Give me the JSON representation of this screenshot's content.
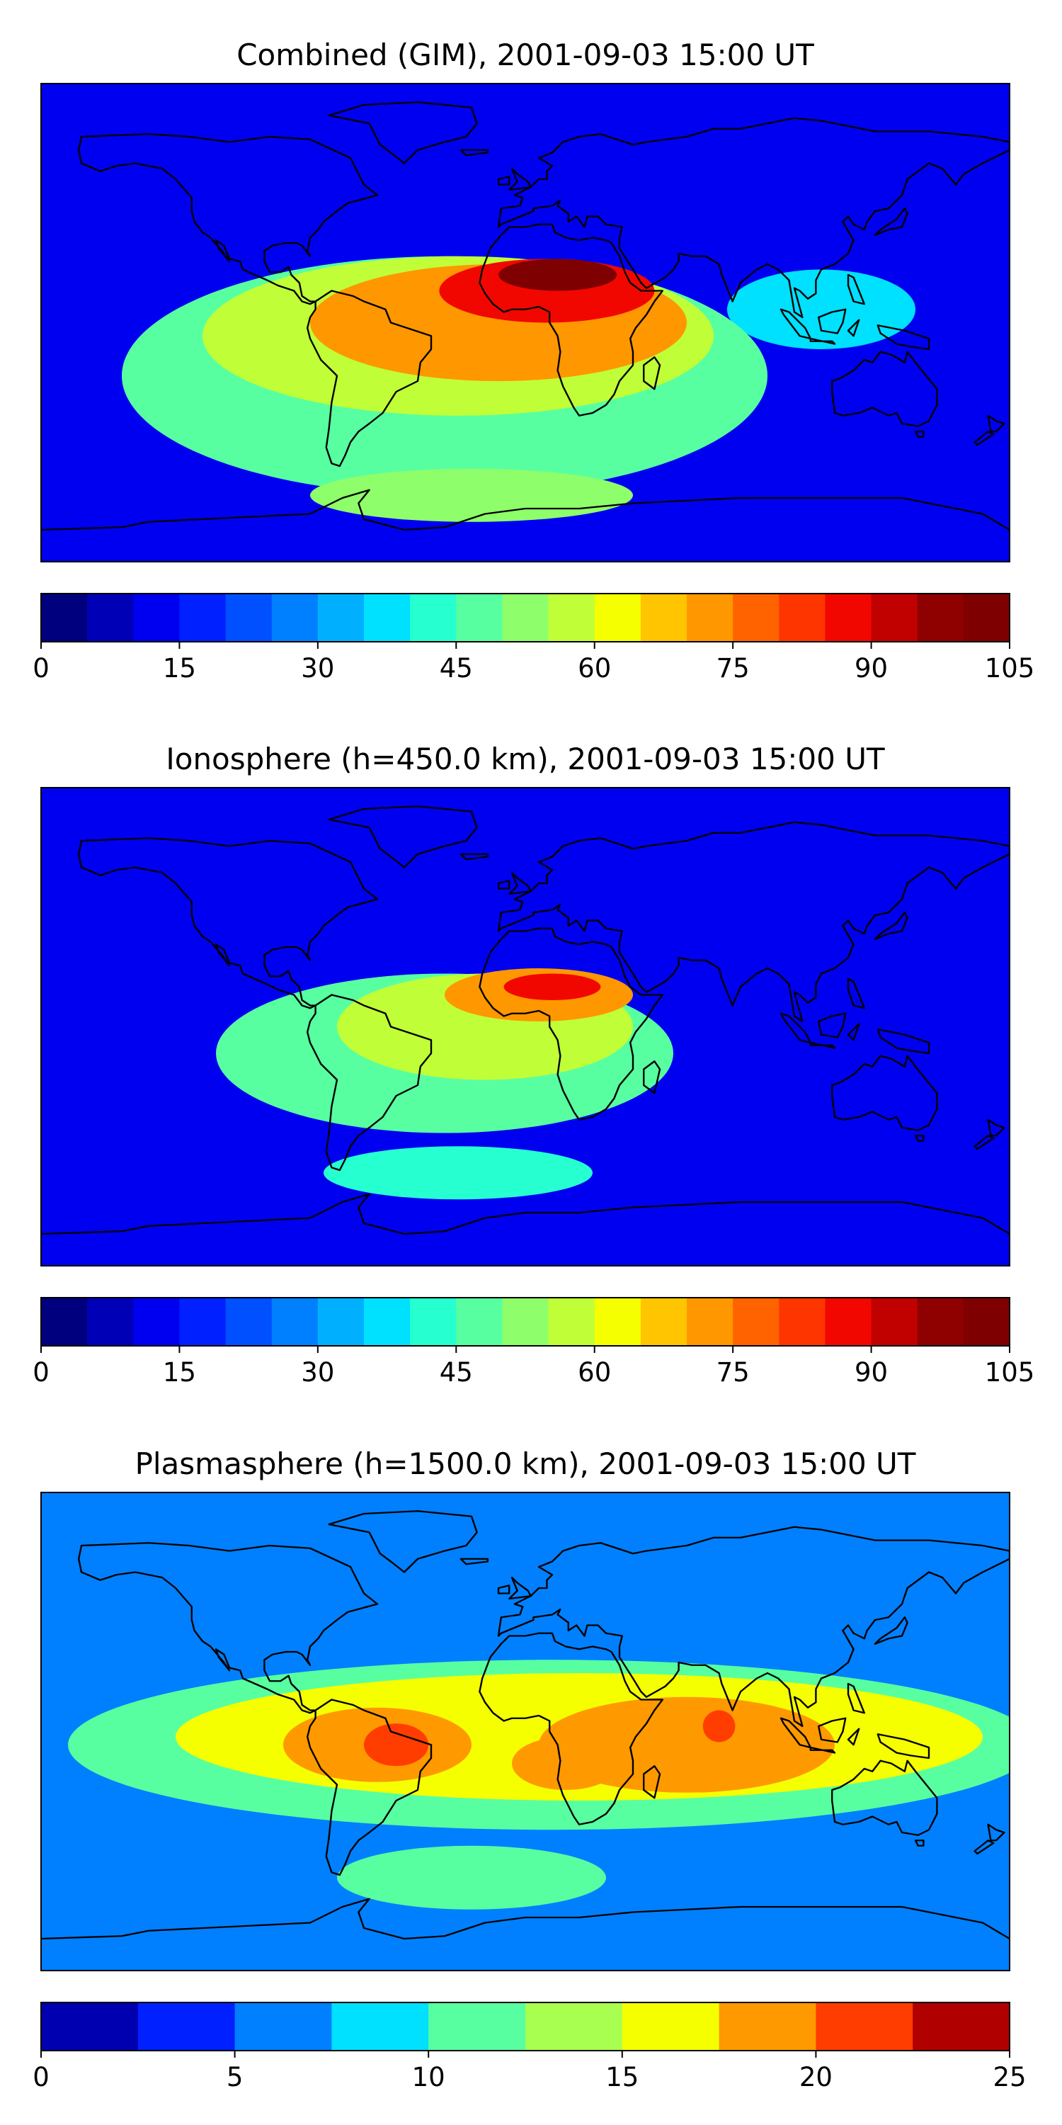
{
  "chart_data": [
    {
      "type": "heatmap",
      "title": "Combined (GIM), 2001-09-03 15:00 UT",
      "colorbar": {
        "min": 0,
        "max": 105,
        "step": 5,
        "ticks": [
          "0",
          "15",
          "30",
          "45",
          "60",
          "75",
          "90",
          "105"
        ],
        "colors": [
          "#00007f",
          "#0000b7",
          "#0000f0",
          "#0020ff",
          "#0050ff",
          "#0080ff",
          "#00b0ff",
          "#00e0ff",
          "#26ffd0",
          "#58ffa0",
          "#8eff6a",
          "#c0ff37",
          "#f5ff00",
          "#ffc500",
          "#ff9700",
          "#ff6300",
          "#ff3500",
          "#f10700",
          "#c10000",
          "#8f0000",
          "#7f0000"
        ]
      },
      "features": [
        {
          "lon": 12,
          "lat": 18,
          "rx": 22,
          "ry": 6,
          "value": 100
        },
        {
          "lon": 8,
          "lat": 12,
          "rx": 40,
          "ry": 12,
          "value": 85
        },
        {
          "lon": -10,
          "lat": 0,
          "rx": 70,
          "ry": 22,
          "value": 72
        },
        {
          "lon": -25,
          "lat": -5,
          "rx": 95,
          "ry": 30,
          "value": 58
        },
        {
          "lon": -30,
          "lat": -20,
          "rx": 120,
          "ry": 45,
          "value": 45
        },
        {
          "lon": -20,
          "lat": -65,
          "rx": 60,
          "ry": 10,
          "value": 50
        },
        {
          "lon": 110,
          "lat": 5,
          "rx": 35,
          "ry": 15,
          "value": 38
        }
      ]
    },
    {
      "type": "heatmap",
      "title": "Ionosphere  (h=450.0 km), 2001-09-03 15:00 UT",
      "colorbar": {
        "min": 0,
        "max": 105,
        "step": 5,
        "ticks": [
          "0",
          "15",
          "30",
          "45",
          "60",
          "75",
          "90",
          "105"
        ],
        "colors": [
          "#00007f",
          "#0000b7",
          "#0000f0",
          "#0020ff",
          "#0050ff",
          "#0080ff",
          "#00b0ff",
          "#00e0ff",
          "#26ffd0",
          "#58ffa0",
          "#8eff6a",
          "#c0ff37",
          "#f5ff00",
          "#ffc500",
          "#ff9700",
          "#ff6300",
          "#ff3500",
          "#f10700",
          "#c10000",
          "#8f0000",
          "#7f0000"
        ]
      },
      "features": [
        {
          "lon": 10,
          "lat": 15,
          "rx": 18,
          "ry": 5,
          "value": 88
        },
        {
          "lon": 5,
          "lat": 12,
          "rx": 35,
          "ry": 10,
          "value": 72
        },
        {
          "lon": -15,
          "lat": 0,
          "rx": 55,
          "ry": 20,
          "value": 58
        },
        {
          "lon": -30,
          "lat": -10,
          "rx": 85,
          "ry": 30,
          "value": 45
        },
        {
          "lon": -25,
          "lat": -55,
          "rx": 50,
          "ry": 10,
          "value": 42
        },
        {
          "lon": 75,
          "lat": 12,
          "rx": 12,
          "ry": 6,
          "value": 12
        }
      ]
    },
    {
      "type": "heatmap",
      "title": "Plasmasphere (h=1500.0 km), 2001-09-03 15:00 UT",
      "colorbar": {
        "min": 0,
        "max": 25,
        "step": 2.5,
        "ticks": [
          "0",
          "5",
          "10",
          "15",
          "20",
          "25"
        ],
        "colors": [
          "#0000b0",
          "#0020ff",
          "#0080ff",
          "#00e0ff",
          "#58ffa0",
          "#a8ff50",
          "#f5ff00",
          "#ff9900",
          "#ff3d00",
          "#b00000"
        ]
      },
      "features": [
        {
          "lon": -48,
          "lat": -5,
          "rx": 12,
          "ry": 8,
          "value": 22
        },
        {
          "lon": 72,
          "lat": 2,
          "rx": 6,
          "ry": 6,
          "value": 21
        },
        {
          "lon": 60,
          "lat": -5,
          "rx": 55,
          "ry": 18,
          "value": 18
        },
        {
          "lon": 15,
          "lat": -12,
          "rx": 20,
          "ry": 10,
          "value": 18
        },
        {
          "lon": -55,
          "lat": -5,
          "rx": 35,
          "ry": 14,
          "value": 18
        },
        {
          "lon": 20,
          "lat": -2,
          "rx": 150,
          "ry": 24,
          "value": 15
        },
        {
          "lon": 10,
          "lat": -5,
          "rx": 180,
          "ry": 32,
          "value": 12
        },
        {
          "lon": -20,
          "lat": -55,
          "rx": 50,
          "ry": 12,
          "value": 12
        }
      ]
    }
  ]
}
